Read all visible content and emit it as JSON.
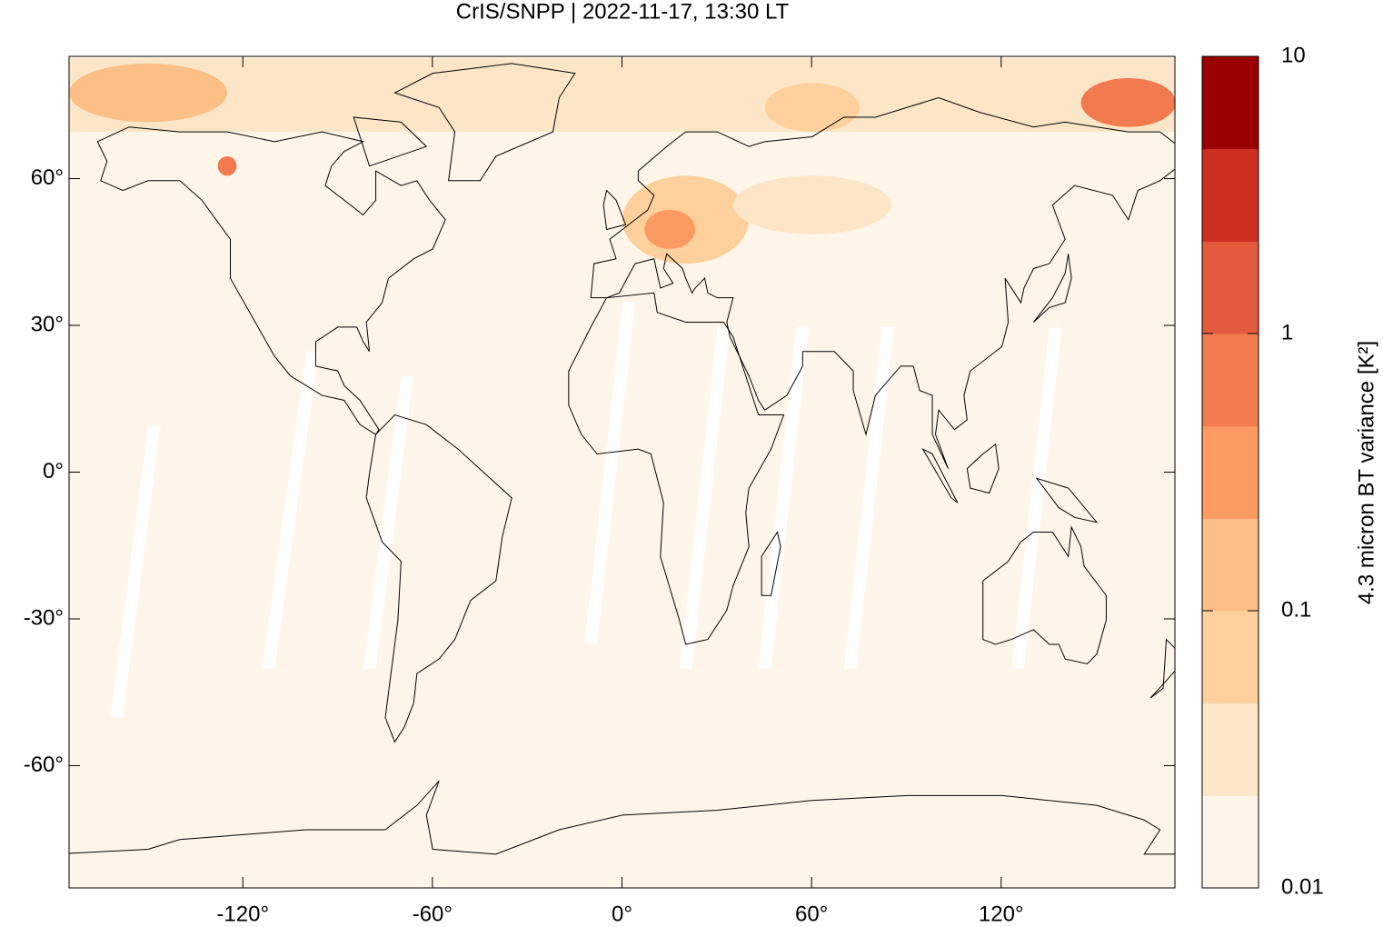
{
  "chart_data": {
    "type": "map",
    "title": "CrIS/SNPP | 2022-11-17, 13:30 LT",
    "xlim": [
      -175,
      175
    ],
    "ylim": [
      -85,
      85
    ],
    "xticks": [
      {
        "value": -120,
        "label": "-120°"
      },
      {
        "value": -60,
        "label": "-60°"
      },
      {
        "value": 0,
        "label": "0°"
      },
      {
        "value": 60,
        "label": "60°"
      },
      {
        "value": 120,
        "label": "120°"
      }
    ],
    "yticks": [
      {
        "value": 60,
        "label": "60°"
      },
      {
        "value": 30,
        "label": "30°"
      },
      {
        "value": 0,
        "label": "0°"
      },
      {
        "value": -30,
        "label": "-30°"
      },
      {
        "value": -60,
        "label": "-60°"
      }
    ],
    "colorbar": {
      "label": "4.3 micron BT variance [K²]",
      "scale": "log",
      "lim": [
        0.01,
        10
      ],
      "ticks": [
        0.01,
        0.1,
        1,
        10
      ],
      "colors": [
        "#fff5e8",
        "#fde6c8",
        "#fdd09c",
        "#fdbf85",
        "#fc9a62",
        "#f27a4f",
        "#e35a3c",
        "#cc2f20",
        "#990000"
      ]
    }
  }
}
